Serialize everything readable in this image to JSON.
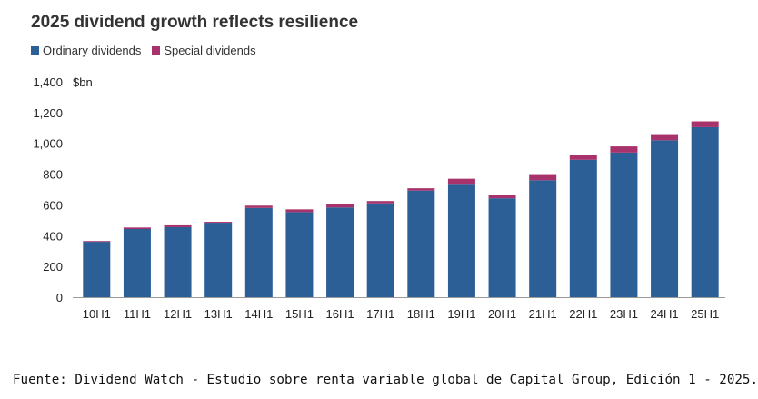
{
  "chart_data": {
    "type": "bar",
    "stacked": true,
    "title": "2025 dividend growth reflects resilience",
    "unit_label": "$bn",
    "categories": [
      "10H1",
      "11H1",
      "12H1",
      "13H1",
      "14H1",
      "15H1",
      "16H1",
      "17H1",
      "18H1",
      "19H1",
      "20H1",
      "21H1",
      "22H1",
      "23H1",
      "24H1",
      "25H1"
    ],
    "series": [
      {
        "name": "Ordinary dividends",
        "color": "#2d5f97",
        "values": [
          360,
          443,
          455,
          484,
          580,
          553,
          583,
          610,
          693,
          737,
          643,
          760,
          893,
          940,
          1020,
          1105
        ]
      },
      {
        "name": "Special dividends",
        "color": "#a8336c",
        "values": [
          5,
          10,
          12,
          6,
          15,
          18,
          22,
          15,
          15,
          33,
          22,
          40,
          32,
          40,
          40,
          38
        ]
      }
    ],
    "ylim": [
      0,
      1400
    ],
    "yticks": [
      "0",
      "200",
      "400",
      "600",
      "800",
      "1,000",
      "1,200",
      "1,400"
    ],
    "ytick_values": [
      0,
      200,
      400,
      600,
      800,
      1000,
      1200,
      1400
    ],
    "legend_position": "top-left",
    "grid": false
  },
  "source_text": "Fuente: Dividend Watch - Estudio sobre renta variable global de Capital Group, Edición 1 - 2025."
}
